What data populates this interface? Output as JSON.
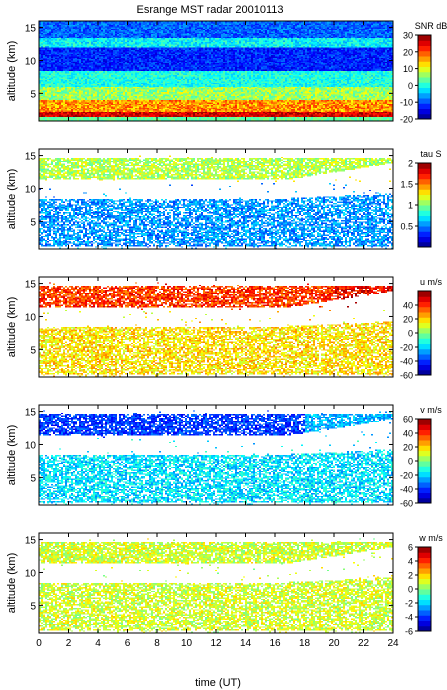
{
  "figure": {
    "title": "Esrange MST radar 20010113",
    "xlabel": "time (UT)"
  },
  "chart_data": [
    {
      "type": "heatmap",
      "quantity": "SNR",
      "colorbar_label": "SNR dB",
      "ylabel": "altitude (km)",
      "xlim": [
        0,
        24
      ],
      "ylim": [
        0.8,
        16
      ],
      "xticks": [
        0,
        2,
        4,
        6,
        8,
        10,
        12,
        14,
        16,
        18,
        20,
        22,
        24
      ],
      "yticks": [
        5,
        10,
        15
      ],
      "clim": [
        -20,
        30
      ],
      "cbar_ticks": [
        -20,
        -10,
        0,
        10,
        20,
        30
      ],
      "colormap": "jet",
      "coverage": "full"
    },
    {
      "type": "heatmap",
      "quantity": "tau",
      "colorbar_label": "tau S",
      "ylabel": "altitude (km)",
      "xlim": [
        0,
        24
      ],
      "ylim": [
        0.8,
        16
      ],
      "xticks": [
        0,
        2,
        4,
        6,
        8,
        10,
        12,
        14,
        16,
        18,
        20,
        22,
        24
      ],
      "yticks": [
        5,
        10,
        15
      ],
      "clim": [
        0,
        2
      ],
      "cbar_ticks": [
        0.5,
        1,
        1.5,
        2
      ],
      "colormap": "jet",
      "coverage": "sparse"
    },
    {
      "type": "heatmap",
      "quantity": "u",
      "colorbar_label": "u m/s",
      "ylabel": "altitude (km)",
      "xlim": [
        0,
        24
      ],
      "ylim": [
        0.8,
        16
      ],
      "xticks": [
        0,
        2,
        4,
        6,
        8,
        10,
        12,
        14,
        16,
        18,
        20,
        22,
        24
      ],
      "yticks": [
        5,
        10,
        15
      ],
      "clim": [
        -60,
        60
      ],
      "cbar_ticks": [
        -60,
        -40,
        -20,
        0,
        20,
        40
      ],
      "colormap": "jet",
      "coverage": "sparse"
    },
    {
      "type": "heatmap",
      "quantity": "v",
      "colorbar_label": "v m/s",
      "ylabel": "altitude (km)",
      "xlim": [
        0,
        24
      ],
      "ylim": [
        0.8,
        16
      ],
      "xticks": [
        0,
        2,
        4,
        6,
        8,
        10,
        12,
        14,
        16,
        18,
        20,
        22,
        24
      ],
      "yticks": [
        5,
        10,
        15
      ],
      "clim": [
        -60,
        60
      ],
      "cbar_ticks": [
        -60,
        -40,
        -20,
        0,
        20,
        40,
        60
      ],
      "colormap": "jet",
      "coverage": "sparse"
    },
    {
      "type": "heatmap",
      "quantity": "w",
      "colorbar_label": "w m/s",
      "ylabel": "altitude (km)",
      "xlim": [
        0,
        24
      ],
      "ylim": [
        0.8,
        16
      ],
      "xticks": [
        0,
        2,
        4,
        6,
        8,
        10,
        12,
        14,
        16,
        18,
        20,
        22,
        24
      ],
      "yticks": [
        5,
        10,
        15
      ],
      "clim": [
        -6,
        6
      ],
      "cbar_ticks": [
        -6,
        -4,
        -2,
        0,
        2,
        4,
        6
      ],
      "colormap": "jet",
      "coverage": "sparse"
    }
  ]
}
